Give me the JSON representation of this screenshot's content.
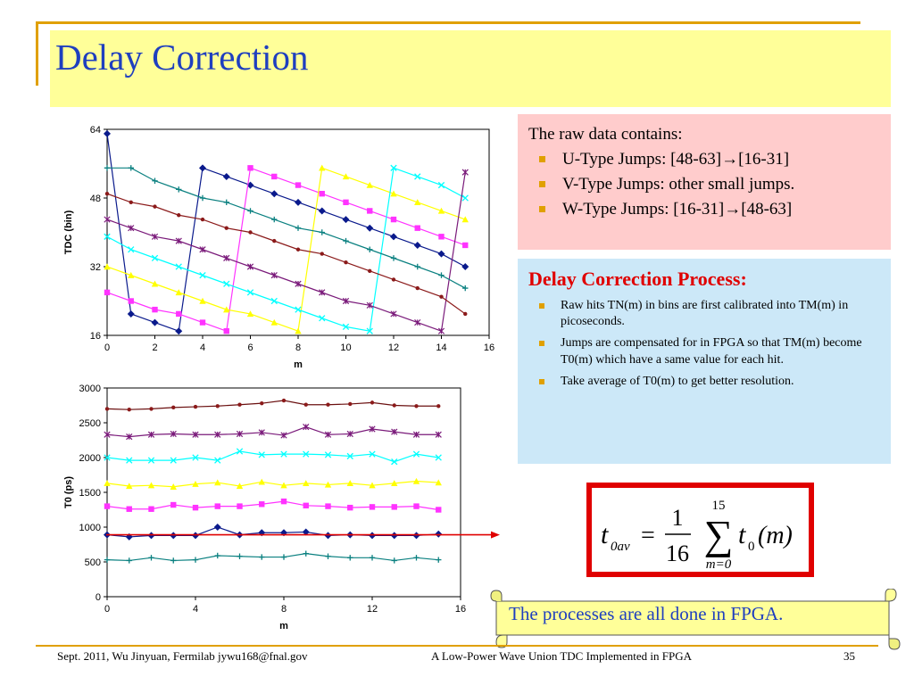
{
  "slide": {
    "title": "Delay Correction",
    "page_number": "35"
  },
  "raw_box": {
    "intro": "The raw data contains:",
    "items": [
      "U-Type Jumps: [48-63]→[16-31]",
      "V-Type Jumps: other small jumps.",
      "W-Type Jumps: [16-31]→[48-63]"
    ]
  },
  "process_box": {
    "heading": "Delay Correction Process:",
    "items": [
      "Raw hits TN(m) in bins are first calibrated into TM(m) in picoseconds.",
      "Jumps are compensated for in FPGA so that TM(m) become T0(m) which have a same value for each hit.",
      "Take average of T0(m) to get better resolution."
    ]
  },
  "formula": {
    "lhs_var": "t",
    "lhs_sub": "0av",
    "equals": "=",
    "numerator": "1",
    "denominator": "16",
    "sum_symbol": "∑",
    "sum_upper": "15",
    "sum_lower": "m=0",
    "rhs_var": "t",
    "rhs_sub": "0",
    "rhs_arg": "(m)"
  },
  "note": {
    "text": "The processes are all done in FPGA."
  },
  "footer": {
    "left": "Sept. 2011, Wu Jinyuan, Fermilab jywu168@fnal.gov",
    "center": "A Low-Power Wave Union TDC Implemented in FPGA"
  },
  "colors": {
    "title": "#1f3fbf",
    "accent": "#e0a000",
    "title_band": "#ffff99",
    "pink_box": "#ffcccc",
    "blue_box": "#cce8f8",
    "red": "#e00000"
  },
  "chart_data": [
    {
      "type": "line",
      "title": "",
      "xlabel": "m",
      "ylabel": "TDC (bin)",
      "xlim": [
        0,
        16
      ],
      "ylim": [
        16,
        64
      ],
      "xticks": [
        0,
        2,
        4,
        6,
        8,
        10,
        12,
        14,
        16
      ],
      "yticks": [
        16,
        32,
        48,
        64
      ],
      "grid": false,
      "legend": "none",
      "x": [
        0,
        1,
        2,
        3,
        4,
        5,
        6,
        7,
        8,
        9,
        10,
        11,
        12,
        13,
        14,
        15
      ],
      "series": [
        {
          "color": "#0a1a8c",
          "marker": "diamond",
          "values": [
            63,
            21,
            19,
            17,
            55,
            53,
            51,
            49,
            47,
            45,
            43,
            41,
            39,
            37,
            35,
            32
          ]
        },
        {
          "color": "#ff33ff",
          "marker": "square",
          "values": [
            26,
            24,
            22,
            21,
            19,
            17,
            55,
            53,
            51,
            49,
            47,
            45,
            43,
            41,
            39,
            37
          ]
        },
        {
          "color": "#ffff00",
          "marker": "triangle",
          "values": [
            32,
            30,
            28,
            26,
            24,
            22,
            21,
            19,
            17,
            55,
            53,
            51,
            49,
            47,
            45,
            43
          ]
        },
        {
          "color": "#00ffff",
          "marker": "x",
          "values": [
            39,
            36,
            34,
            32,
            30,
            28,
            26,
            24,
            22,
            20,
            18,
            17,
            55,
            53,
            51,
            48
          ]
        },
        {
          "color": "#7a1a7a",
          "marker": "star",
          "values": [
            43,
            41,
            39,
            38,
            36,
            34,
            32,
            30,
            28,
            26,
            24,
            23,
            21,
            19,
            17,
            54
          ]
        },
        {
          "color": "#8b1a1a",
          "marker": "dot",
          "values": [
            49,
            47,
            46,
            44,
            43,
            41,
            40,
            38,
            36,
            35,
            33,
            31,
            29,
            27,
            25,
            21
          ]
        },
        {
          "color": "#0a8080",
          "marker": "plus",
          "values": [
            55,
            55,
            52,
            50,
            48,
            47,
            45,
            43,
            41,
            40,
            38,
            36,
            34,
            32,
            30,
            27
          ]
        }
      ]
    },
    {
      "type": "line",
      "title": "",
      "xlabel": "m",
      "ylabel": "T0 (ps)",
      "xlim": [
        0,
        16
      ],
      "ylim": [
        0,
        3000
      ],
      "xticks": [
        0,
        4,
        8,
        12,
        16
      ],
      "yticks": [
        0,
        500,
        1000,
        1500,
        2000,
        2500,
        3000
      ],
      "grid": false,
      "legend": "none",
      "x": [
        0,
        1,
        2,
        3,
        4,
        5,
        6,
        7,
        8,
        9,
        10,
        11,
        12,
        13,
        14,
        15
      ],
      "series": [
        {
          "color": "#8b1a1a",
          "marker": "dot",
          "values": [
            2700,
            2690,
            2700,
            2720,
            2730,
            2740,
            2760,
            2780,
            2820,
            2760,
            2760,
            2770,
            2790,
            2750,
            2740,
            2740
          ]
        },
        {
          "color": "#7a1a7a",
          "marker": "star",
          "values": [
            2330,
            2300,
            2330,
            2340,
            2330,
            2330,
            2340,
            2360,
            2320,
            2440,
            2330,
            2340,
            2410,
            2370,
            2330,
            2330
          ]
        },
        {
          "color": "#00ffff",
          "marker": "x",
          "values": [
            2000,
            1960,
            1960,
            1960,
            2000,
            1960,
            2090,
            2040,
            2050,
            2050,
            2040,
            2020,
            2050,
            1940,
            2050,
            2000
          ]
        },
        {
          "color": "#ffff00",
          "marker": "triangle",
          "values": [
            1630,
            1590,
            1600,
            1580,
            1620,
            1640,
            1590,
            1650,
            1600,
            1630,
            1610,
            1630,
            1600,
            1630,
            1660,
            1640
          ]
        },
        {
          "color": "#ff33ff",
          "marker": "square",
          "values": [
            1300,
            1260,
            1260,
            1320,
            1280,
            1300,
            1300,
            1330,
            1370,
            1310,
            1300,
            1280,
            1290,
            1290,
            1300,
            1250
          ]
        },
        {
          "color": "#0a1a8c",
          "marker": "diamond",
          "values": [
            890,
            860,
            880,
            880,
            880,
            1000,
            890,
            920,
            920,
            930,
            880,
            890,
            880,
            880,
            880,
            900
          ]
        },
        {
          "color": "#0a8080",
          "marker": "plus",
          "values": [
            530,
            520,
            560,
            520,
            530,
            590,
            580,
            570,
            570,
            620,
            580,
            560,
            560,
            520,
            560,
            530
          ]
        }
      ]
    }
  ]
}
